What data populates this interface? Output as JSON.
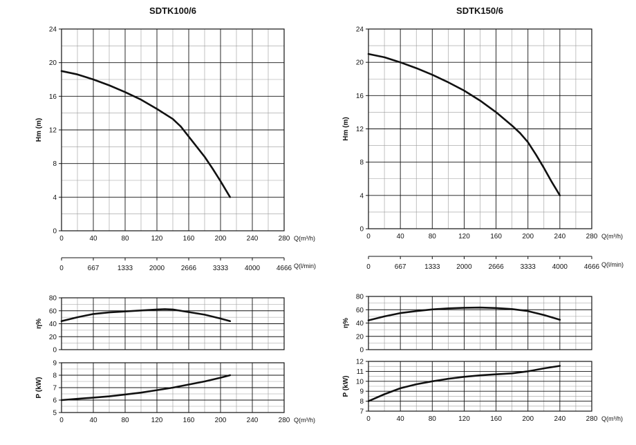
{
  "chart_data": [
    {
      "type": "line",
      "title": "SDTK100/6",
      "x_unit_label": "Q(m³/h)",
      "x2_unit_label": "Q(l/min)",
      "x_ticks": [
        "0",
        "40",
        "80",
        "120",
        "160",
        "200",
        "240",
        "280"
      ],
      "x2_ticks": [
        "0",
        "667",
        "1333",
        "2000",
        "2666",
        "3333",
        "4000",
        "4666"
      ],
      "xlim": [
        0,
        280
      ],
      "head": {
        "ylabel": "Hm (m)",
        "ylim": [
          0,
          24
        ],
        "y_ticks": [
          "0",
          "4",
          "8",
          "12",
          "16",
          "20",
          "24"
        ],
        "x": [
          0,
          20,
          40,
          60,
          80,
          100,
          120,
          140,
          150,
          160,
          170,
          180,
          190,
          200,
          212
        ],
        "y": [
          19,
          18.6,
          18,
          17.3,
          16.5,
          15.6,
          14.5,
          13.3,
          12.4,
          11.2,
          10,
          8.8,
          7.4,
          5.9,
          4
        ]
      },
      "efficiency": {
        "ylabel": "η%",
        "ylim": [
          0,
          80
        ],
        "y_ticks": [
          "0",
          "20",
          "40",
          "60",
          "80"
        ],
        "x": [
          0,
          20,
          40,
          60,
          80,
          100,
          120,
          130,
          140,
          160,
          180,
          200,
          212
        ],
        "y": [
          44,
          50,
          55,
          57.5,
          59,
          60.5,
          62,
          62.5,
          62,
          58,
          54,
          48,
          44
        ]
      },
      "power": {
        "ylabel": "P (kW)",
        "ylim": [
          5,
          9
        ],
        "y_ticks": [
          "5",
          "6",
          "7",
          "8",
          "9"
        ],
        "x": [
          0,
          20,
          40,
          60,
          80,
          100,
          120,
          140,
          160,
          180,
          200,
          212
        ],
        "y": [
          6,
          6.1,
          6.2,
          6.3,
          6.45,
          6.6,
          6.8,
          7.0,
          7.25,
          7.5,
          7.8,
          8.0
        ]
      }
    },
    {
      "type": "line",
      "title": "SDTK150/6",
      "x_unit_label": "Q(m³/h)",
      "x2_unit_label": "Q(l/min)",
      "x_ticks": [
        "0",
        "40",
        "80",
        "120",
        "160",
        "200",
        "240",
        "280"
      ],
      "x2_ticks": [
        "0",
        "667",
        "1333",
        "2000",
        "2666",
        "3333",
        "4000",
        "4666"
      ],
      "xlim": [
        0,
        280
      ],
      "head": {
        "ylabel": "Hm (m)",
        "ylim": [
          0,
          24
        ],
        "y_ticks": [
          "0",
          "4",
          "8",
          "12",
          "16",
          "20",
          "24"
        ],
        "x": [
          0,
          20,
          40,
          60,
          80,
          100,
          120,
          140,
          160,
          180,
          190,
          200,
          210,
          220,
          230,
          240
        ],
        "y": [
          21,
          20.6,
          20,
          19.3,
          18.5,
          17.6,
          16.6,
          15.4,
          14,
          12.4,
          11.5,
          10.4,
          8.9,
          7.3,
          5.6,
          4
        ]
      },
      "efficiency": {
        "ylabel": "η%",
        "ylim": [
          0,
          80
        ],
        "y_ticks": [
          "0",
          "20",
          "40",
          "60",
          "80"
        ],
        "x": [
          0,
          20,
          40,
          60,
          80,
          100,
          120,
          140,
          160,
          180,
          200,
          220,
          240
        ],
        "y": [
          44,
          50,
          55,
          58,
          60.5,
          62,
          63,
          63.3,
          62.5,
          61,
          58,
          52,
          45
        ]
      },
      "power": {
        "ylabel": "P (kW)",
        "ylim": [
          7,
          12
        ],
        "y_ticks": [
          "7",
          "8",
          "9",
          "10",
          "11",
          "12"
        ],
        "x": [
          0,
          20,
          40,
          60,
          80,
          100,
          120,
          140,
          160,
          180,
          200,
          220,
          240
        ],
        "y": [
          8,
          8.7,
          9.3,
          9.7,
          10.0,
          10.25,
          10.45,
          10.6,
          10.7,
          10.8,
          11.0,
          11.3,
          11.55
        ]
      }
    }
  ]
}
